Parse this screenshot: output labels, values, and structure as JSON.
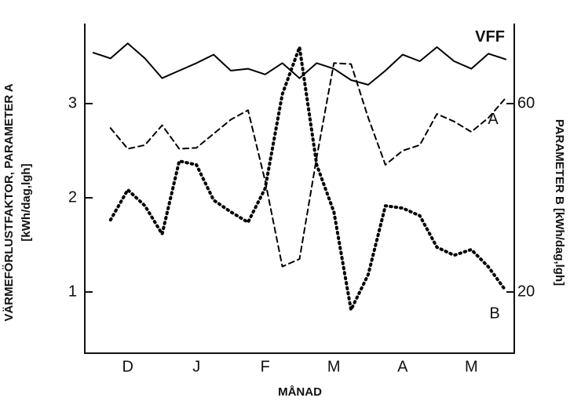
{
  "chart_data": {
    "type": "line",
    "xlabel": "MÅNAD",
    "ylabel": [
      "VÄRMEFÖRLUSTFAKTOR, PARAMETER A",
      "[kWh/dag,lgh]"
    ],
    "y2label": "PARAMETER B [kWh/dag,lgh]",
    "categories": [
      null,
      null,
      "D",
      null,
      null,
      null,
      "J",
      null,
      null,
      null,
      "F",
      null,
      null,
      null,
      "M",
      null,
      null,
      null,
      "A",
      null,
      null,
      null,
      "M",
      null,
      null
    ],
    "ylim": [
      0.35,
      3.85
    ],
    "yticks": [
      1,
      2,
      3
    ],
    "y2lim": [
      7,
      77
    ],
    "y2ticks": [
      20,
      60
    ],
    "grid": false,
    "series": [
      {
        "name": "VFF",
        "color": "#000000",
        "style": "solid",
        "values": [
          3.54,
          3.48,
          3.64,
          3.48,
          3.27,
          3.35,
          3.43,
          3.52,
          3.35,
          3.37,
          3.31,
          3.43,
          3.27,
          3.43,
          3.37,
          3.25,
          3.2,
          3.35,
          3.52,
          3.45,
          3.6,
          3.45,
          3.37,
          3.53,
          3.47
        ]
      },
      {
        "name": "A",
        "color": "#000000",
        "style": "dashed",
        "values": [
          null,
          2.74,
          2.52,
          2.56,
          2.77,
          2.52,
          2.53,
          2.68,
          2.83,
          2.93,
          2.18,
          1.27,
          1.35,
          2.43,
          3.43,
          3.42,
          2.85,
          2.35,
          2.5,
          2.56,
          2.89,
          2.81,
          2.7,
          2.85,
          3.06
        ]
      },
      {
        "name": "B",
        "color": "#000000",
        "style": "dotted",
        "axis": "y2",
        "values": [
          null,
          35.3,
          41.7,
          38.3,
          32.3,
          47.8,
          47,
          39.5,
          37,
          34.8,
          42,
          62,
          72,
          47,
          37,
          16.2,
          23.7,
          38.3,
          37.8,
          36.2,
          29.5,
          27.8,
          29,
          25.3,
          20.3
        ]
      }
    ]
  }
}
